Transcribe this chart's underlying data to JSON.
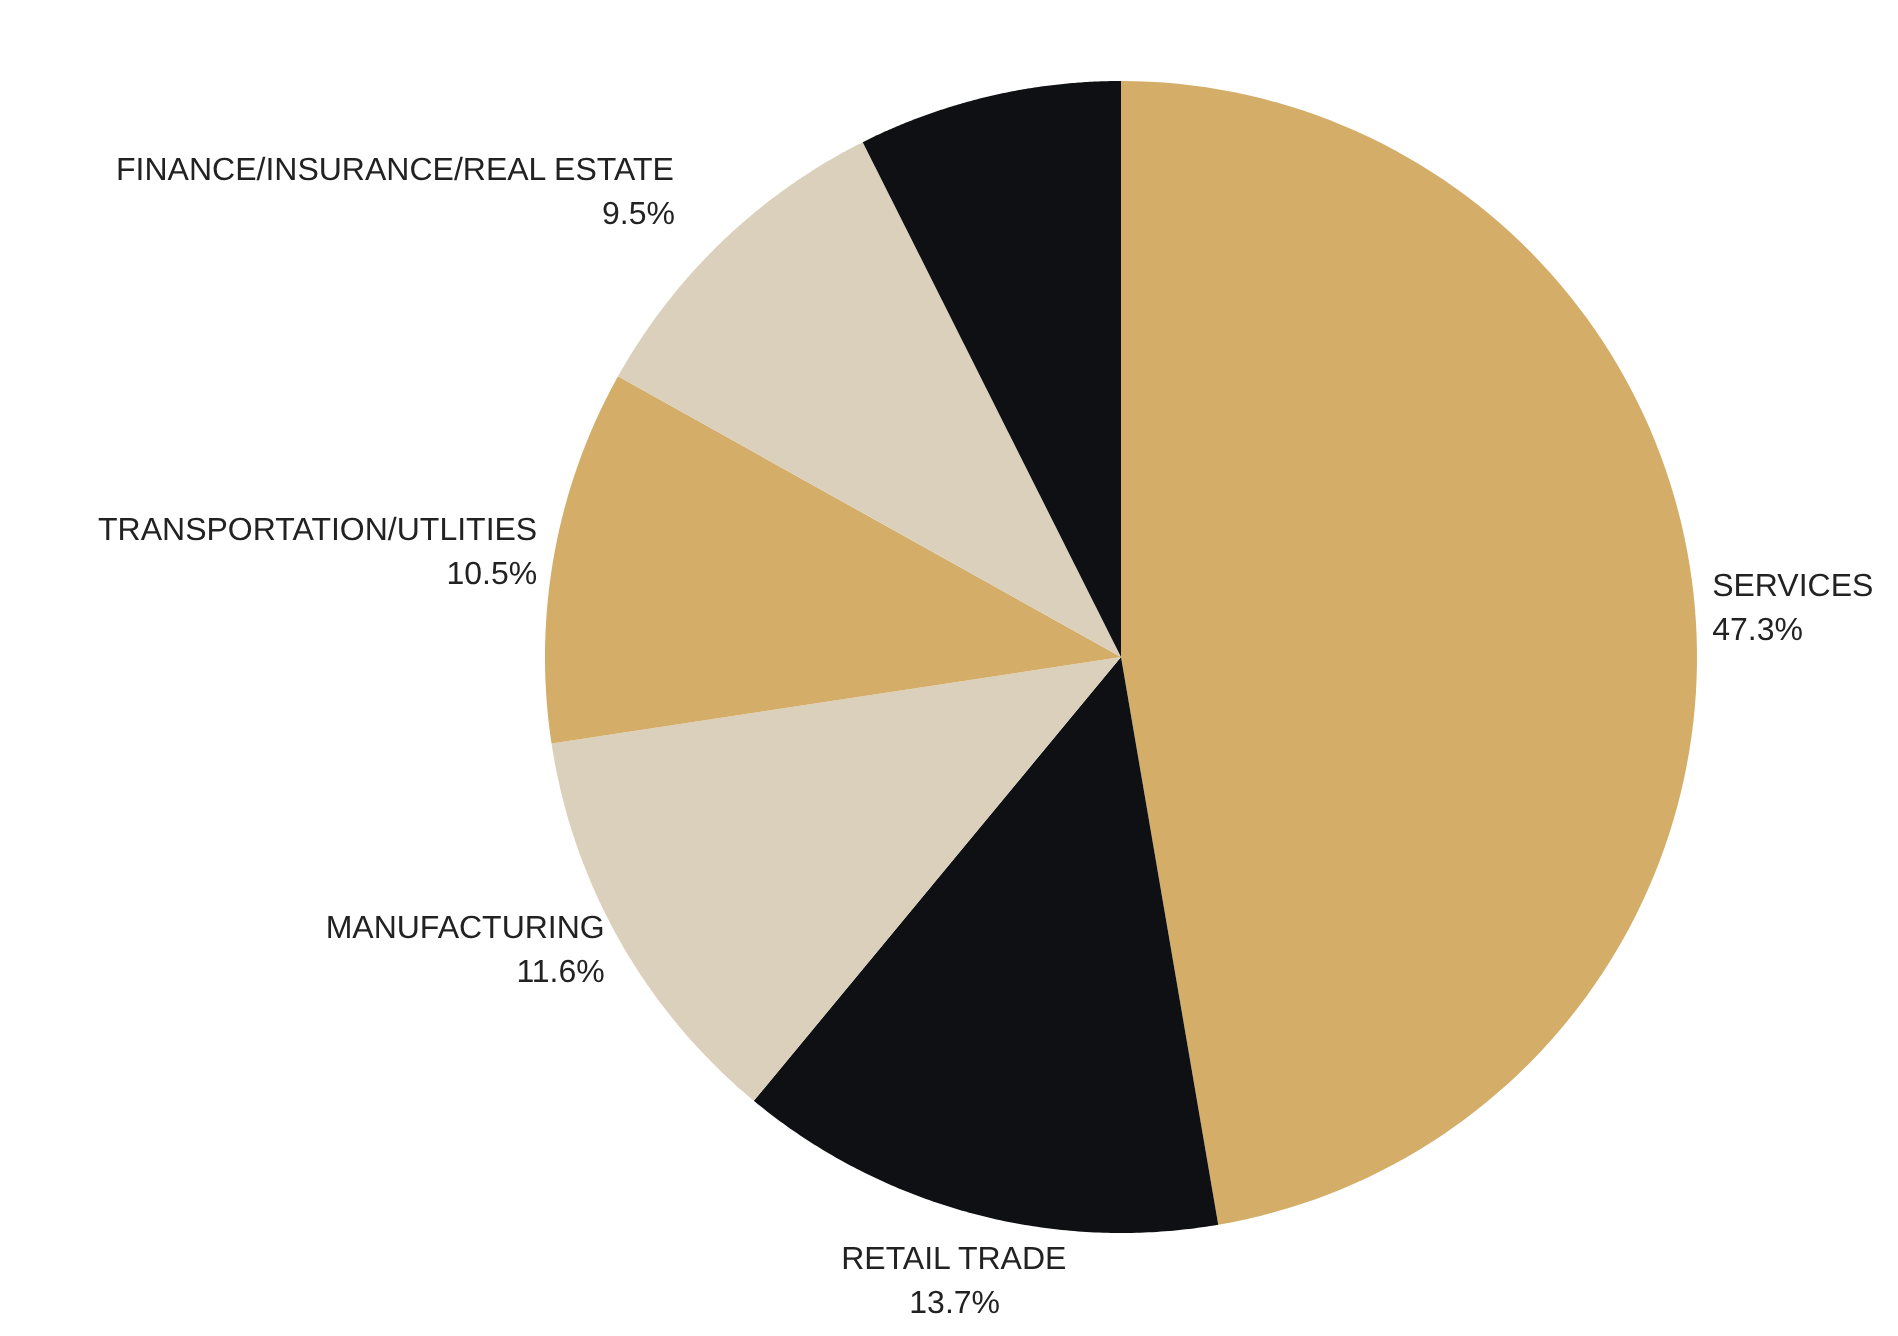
{
  "chart_data": {
    "type": "pie",
    "categories": [
      "SERVICES",
      "RETAIL TRADE",
      "MANUFACTURING",
      "TRANSPORTATION/UTLITIES",
      "FINANCE/INSURANCE/REAL ESTATE",
      null
    ],
    "values": [
      47.3,
      13.7,
      11.6,
      10.5,
      9.5,
      7.4
    ],
    "value_labels": [
      "47.3%",
      "13.7%",
      "11.6%",
      "10.5%",
      "9.5%",
      null
    ],
    "colors": [
      "#d4ad68",
      "#0f1014",
      "#dbd0bb",
      "#d4ad68",
      "#dbd0bb",
      "#0f1014"
    ]
  }
}
